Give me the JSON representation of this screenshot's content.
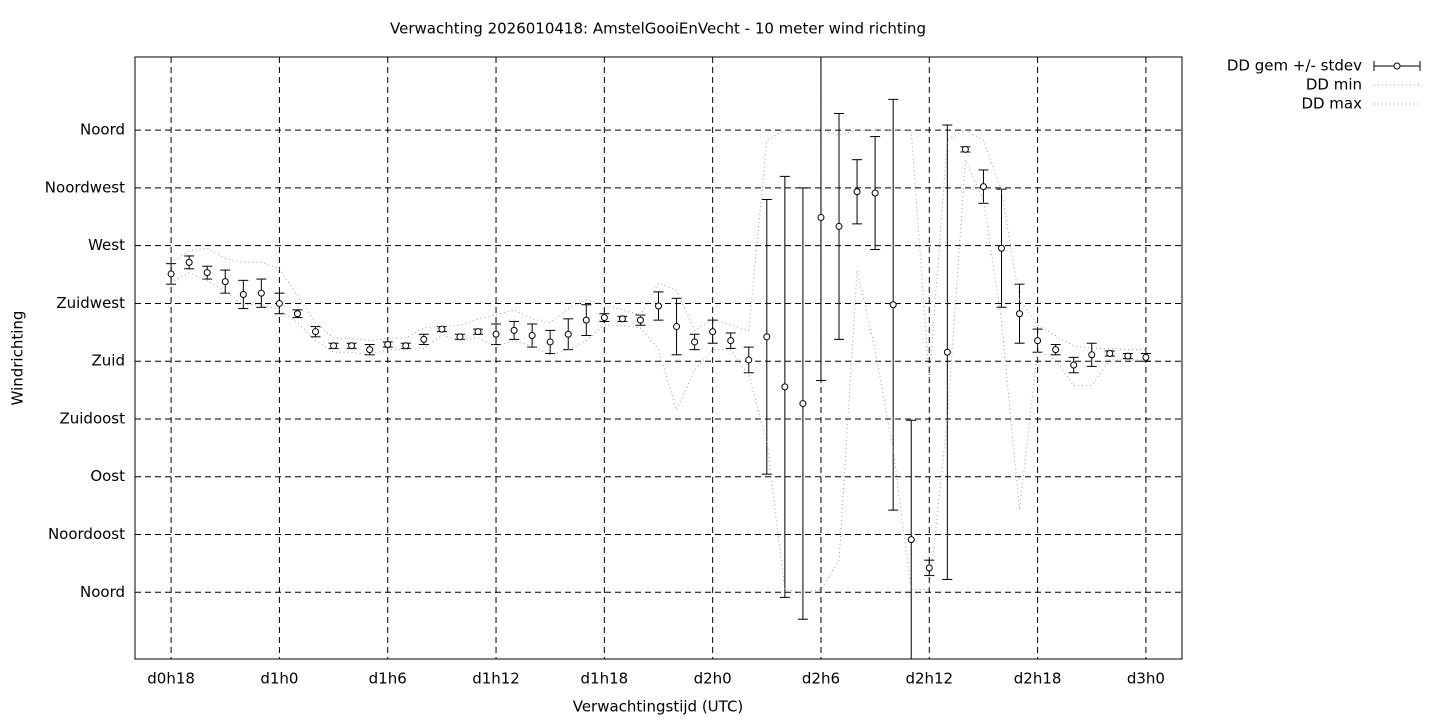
{
  "chart_data": {
    "type": "errorbar",
    "title": "Verwachting 2026010418: AmstelGooiEnVecht - 10 meter wind richting",
    "x_label": "Verwachtingstijd (UTC)",
    "y_label": "Windrichting",
    "x": [
      18,
      19,
      20,
      21,
      22,
      23,
      24,
      25,
      26,
      27,
      28,
      29,
      30,
      31,
      32,
      33,
      34,
      35,
      36,
      37,
      38,
      39,
      40,
      41,
      42,
      43,
      44,
      45,
      46,
      47,
      48,
      49,
      50,
      51,
      52,
      53,
      54,
      55,
      56,
      57,
      58,
      59,
      60,
      61,
      62,
      63,
      64,
      65,
      66,
      67,
      68,
      69,
      70,
      71,
      72
    ],
    "series": [
      {
        "name": "DD gem +/- stdev",
        "color": "#000000",
        "values": [
          248,
          257,
          249,
          242,
          232,
          233,
          225,
          217,
          203,
          192,
          192,
          189,
          193,
          192,
          197,
          205,
          199,
          203,
          201,
          204,
          200,
          195,
          201,
          212,
          214,
          213,
          212,
          223,
          207,
          195,
          203,
          196,
          181,
          199,
          160,
          147,
          292,
          285,
          312,
          311,
          224,
          41,
          19,
          187,
          345,
          316,
          268,
          217,
          196,
          189,
          177,
          185,
          186,
          184,
          183
        ],
        "errors": [
          8,
          5,
          5,
          9,
          11,
          11,
          8,
          3,
          4,
          2,
          2,
          4,
          2,
          2,
          4,
          2,
          2,
          2,
          8,
          7,
          9,
          9,
          12,
          12,
          3,
          2,
          4,
          11,
          22,
          6,
          9,
          6,
          10,
          107,
          164,
          168,
          127,
          88,
          25,
          44,
          160,
          93,
          6,
          177,
          2,
          13,
          46,
          23,
          9,
          4,
          6,
          9,
          2,
          2,
          3
        ]
      },
      {
        "name": "DD min",
        "color": "#a0a0a0",
        "values": [
          241,
          249,
          243,
          234,
          224,
          224,
          220,
          210,
          196,
          187,
          187,
          185,
          189,
          189,
          190,
          200,
          197,
          198,
          192,
          196,
          192,
          185,
          189,
          196,
          208,
          208,
          206,
          189,
          142,
          173,
          189,
          189,
          169,
          118,
          2,
          0,
          2,
          25,
          251,
          189,
          111,
          2,
          2,
          134,
          337,
          305,
          212,
          64,
          189,
          181,
          161,
          161,
          181,
          181,
          181
        ]
      },
      {
        "name": "DD max",
        "color": "#a0a0a0",
        "values": [
          257,
          266,
          268,
          260,
          257,
          257,
          252,
          231,
          210,
          198,
          198,
          196,
          198,
          198,
          206,
          207,
          208,
          213,
          216,
          220,
          213,
          210,
          221,
          228,
          224,
          220,
          216,
          241,
          235,
          204,
          213,
          208,
          204,
          352,
          360,
          360,
          360,
          356,
          360,
          360,
          360,
          360,
          165,
          352,
          360,
          352,
          313,
          228,
          208,
          200,
          192,
          190,
          190,
          189,
          189
        ]
      }
    ],
    "xlim": [
      16,
      74
    ],
    "xticks": [
      {
        "value": 18,
        "label": "d0h18"
      },
      {
        "value": 24,
        "label": "d1h0"
      },
      {
        "value": 30,
        "label": "d1h6"
      },
      {
        "value": 36,
        "label": "d1h12"
      },
      {
        "value": 42,
        "label": "d1h18"
      },
      {
        "value": 48,
        "label": "d2h0"
      },
      {
        "value": 54,
        "label": "d2h6"
      },
      {
        "value": 60,
        "label": "d2h12"
      },
      {
        "value": 66,
        "label": "d2h18"
      },
      {
        "value": 72,
        "label": "d3h0"
      }
    ],
    "ylim": [
      -52,
      417
    ],
    "yticks": [
      {
        "value": 0,
        "label": "Noord"
      },
      {
        "value": 45,
        "label": "Noordoost"
      },
      {
        "value": 90,
        "label": "Oost"
      },
      {
        "value": 135,
        "label": "Zuidoost"
      },
      {
        "value": 180,
        "label": "Zuid"
      },
      {
        "value": 225,
        "label": "Zuidwest"
      },
      {
        "value": 270,
        "label": "West"
      },
      {
        "value": 315,
        "label": "Noordwest"
      },
      {
        "value": 360,
        "label": "Noord"
      }
    ],
    "grid": true
  }
}
